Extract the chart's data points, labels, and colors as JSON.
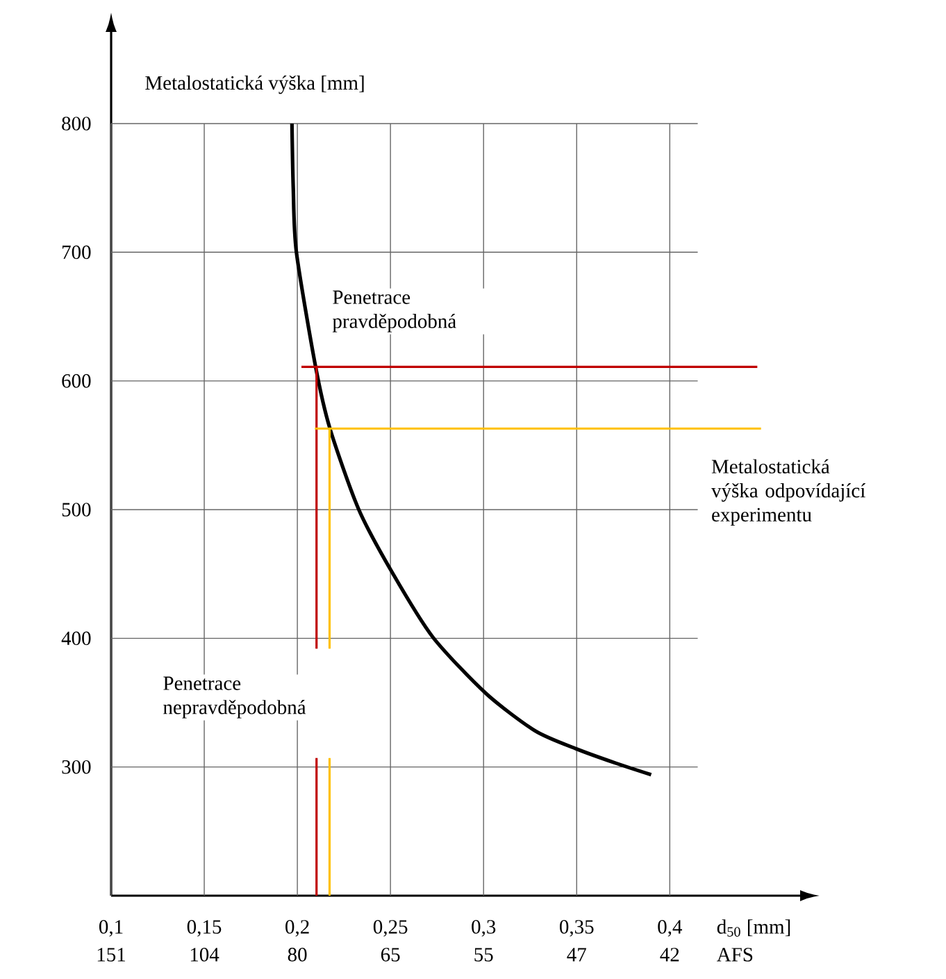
{
  "chart_data": {
    "type": "line",
    "xlabel": "d$_{50}$ [mm]",
    "ylabel": "Metalostatická výška [mm]",
    "xlim": [
      0.1,
      0.47
    ],
    "ylim": [
      200,
      800
    ],
    "xticks": [
      {
        "value": 0.1,
        "label": "0,1"
      },
      {
        "value": 0.15,
        "label": "0,15"
      },
      {
        "value": 0.2,
        "label": "0,2"
      },
      {
        "value": 0.25,
        "label": "0,25"
      },
      {
        "value": 0.3,
        "label": "0,3"
      },
      {
        "value": 0.35,
        "label": "0,35"
      },
      {
        "value": 0.4,
        "label": "0,4"
      }
    ],
    "yticks": [
      300,
      400,
      500,
      600,
      700,
      800
    ],
    "grid": true,
    "marker": "none",
    "line_style": "solid",
    "annotations": [
      "Penetrace pravděpodobná",
      "Penetrace nepravděpodobná",
      "Metalostatická výška odpovídající experimentu",
      "151",
      "104",
      "80",
      "65",
      "55",
      "47",
      "42",
      "AFS"
    ],
    "series": [
      {
        "color": "#000000",
        "x": [
          0.1971,
          0.1978,
          0.1995,
          0.2098,
          0.2175,
          0.233,
          0.251,
          0.2727,
          0.3014,
          0.3278,
          0.35,
          0.371,
          0.39
        ],
        "values": [
          800,
          750,
          700,
          611,
          563,
          500,
          451,
          401,
          357,
          328,
          314,
          303,
          294
        ]
      },
      {
        "color": "#c00000",
        "x": [
          0.2022,
          0.447
        ],
        "values": [
          611,
          611
        ]
      },
      {
        "color": "#c00000",
        "x": [
          0.2103,
          0.2103
        ],
        "values": [
          611,
          392
        ]
      },
      {
        "color": "#c00000",
        "x": [
          0.2103,
          0.2103
        ],
        "values": [
          307,
          200
        ]
      },
      {
        "color": "#ffc000",
        "x": [
          0.2094,
          0.449
        ],
        "values": [
          563,
          563
        ]
      },
      {
        "color": "#ffc000",
        "x": [
          0.2173,
          0.2173
        ],
        "values": [
          563,
          392
        ]
      },
      {
        "color": "#ffc000",
        "x": [
          0.2173,
          0.2173
        ],
        "values": [
          307,
          200
        ]
      }
    ]
  }
}
